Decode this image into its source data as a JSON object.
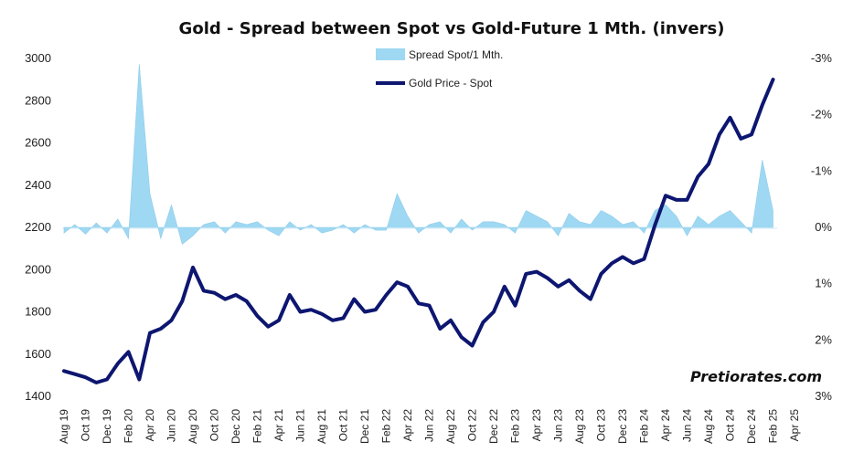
{
  "chart_data": {
    "type": "line",
    "title": "Gold - Spread between Spot vs Gold-Future 1 Mth. (invers)",
    "watermark": "Pretiorates.com",
    "legend_position": "top-center",
    "legend": [
      {
        "name": "Spread Spot/1 Mth.",
        "color": "#9fd8f2",
        "kind": "area"
      },
      {
        "name": "Gold Price - Spot",
        "color": "#0d1670",
        "kind": "line"
      }
    ],
    "x_ticks": [
      "Aug 19",
      "Oct 19",
      "Dec 19",
      "Feb 20",
      "Apr 20",
      "Jun 20",
      "Aug 20",
      "Oct 20",
      "Dec 20",
      "Feb 21",
      "Apr 21",
      "Jun 21",
      "Aug 21",
      "Oct 21",
      "Dec 21",
      "Feb 22",
      "Apr 22",
      "Jun 22",
      "Aug 22",
      "Oct 22",
      "Dec 22",
      "Feb 23",
      "Apr 23",
      "Jun 23",
      "Aug 23",
      "Oct 23",
      "Dec 23",
      "Feb 24",
      "Apr 24",
      "Jun 24",
      "Aug 24",
      "Oct 24",
      "Dec 24",
      "Feb 25",
      "Apr 25"
    ],
    "y_left": {
      "min": 1400,
      "max": 3000,
      "ticks": [
        "1400",
        "1600",
        "1800",
        "2000",
        "2200",
        "2400",
        "2600",
        "2800",
        "3000"
      ]
    },
    "y_right": {
      "min": -3,
      "max": 3,
      "inverted": true,
      "ticks": [
        "-3%",
        "-2%",
        "-1%",
        "0%",
        "1%",
        "2%",
        "3%"
      ]
    },
    "series": [
      {
        "name": "Gold Price - Spot",
        "axis": "left",
        "x": [
          "2019-08",
          "2019-09",
          "2019-10",
          "2019-11",
          "2019-12",
          "2020-01",
          "2020-02",
          "2020-03",
          "2020-04",
          "2020-05",
          "2020-06",
          "2020-07",
          "2020-08",
          "2020-09",
          "2020-10",
          "2020-11",
          "2020-12",
          "2021-01",
          "2021-02",
          "2021-03",
          "2021-04",
          "2021-05",
          "2021-06",
          "2021-07",
          "2021-08",
          "2021-09",
          "2021-10",
          "2021-11",
          "2021-12",
          "2022-01",
          "2022-02",
          "2022-03",
          "2022-04",
          "2022-05",
          "2022-06",
          "2022-07",
          "2022-08",
          "2022-09",
          "2022-10",
          "2022-11",
          "2022-12",
          "2023-01",
          "2023-02",
          "2023-03",
          "2023-04",
          "2023-05",
          "2023-06",
          "2023-07",
          "2023-08",
          "2023-09",
          "2023-10",
          "2023-11",
          "2023-12",
          "2024-01",
          "2024-02",
          "2024-03",
          "2024-04",
          "2024-05",
          "2024-06",
          "2024-07",
          "2024-08",
          "2024-09",
          "2024-10",
          "2024-11",
          "2024-12",
          "2025-01",
          "2025-02"
        ],
        "values": [
          1520,
          1505,
          1490,
          1465,
          1480,
          1555,
          1610,
          1480,
          1700,
          1720,
          1760,
          1850,
          2010,
          1900,
          1890,
          1860,
          1880,
          1850,
          1780,
          1730,
          1760,
          1880,
          1800,
          1810,
          1790,
          1760,
          1770,
          1860,
          1800,
          1810,
          1880,
          1940,
          1920,
          1840,
          1830,
          1720,
          1760,
          1680,
          1640,
          1750,
          1800,
          1920,
          1830,
          1980,
          1990,
          1960,
          1920,
          1950,
          1900,
          1860,
          1980,
          2030,
          2060,
          2030,
          2050,
          2210,
          2350,
          2330,
          2330,
          2440,
          2500,
          2640,
          2720,
          2620,
          2640,
          2780,
          2900
        ]
      },
      {
        "name": "Spread Spot/1 Mth.",
        "axis": "right",
        "x": [
          "2019-08",
          "2019-09",
          "2019-10",
          "2019-11",
          "2019-12",
          "2020-01",
          "2020-02",
          "2020-03",
          "2020-04",
          "2020-05",
          "2020-06",
          "2020-07",
          "2020-08",
          "2020-09",
          "2020-10",
          "2020-11",
          "2020-12",
          "2021-01",
          "2021-02",
          "2021-03",
          "2021-04",
          "2021-05",
          "2021-06",
          "2021-07",
          "2021-08",
          "2021-09",
          "2021-10",
          "2021-11",
          "2021-12",
          "2022-01",
          "2022-02",
          "2022-03",
          "2022-04",
          "2022-05",
          "2022-06",
          "2022-07",
          "2022-08",
          "2022-09",
          "2022-10",
          "2022-11",
          "2022-12",
          "2023-01",
          "2023-02",
          "2023-03",
          "2023-04",
          "2023-05",
          "2023-06",
          "2023-07",
          "2023-08",
          "2023-09",
          "2023-10",
          "2023-11",
          "2023-12",
          "2024-01",
          "2024-02",
          "2024-03",
          "2024-04",
          "2024-05",
          "2024-06",
          "2024-07",
          "2024-08",
          "2024-09",
          "2024-10",
          "2024-11",
          "2024-12",
          "2025-01",
          "2025-02"
        ],
        "values": [
          0.1,
          -0.05,
          0.12,
          -0.08,
          0.1,
          -0.15,
          0.2,
          -2.9,
          -0.6,
          0.2,
          -0.4,
          0.3,
          0.15,
          -0.05,
          -0.1,
          0.1,
          -0.1,
          -0.05,
          -0.1,
          0.05,
          0.15,
          -0.1,
          0.05,
          -0.05,
          0.1,
          0.05,
          -0.05,
          0.1,
          -0.05,
          0.05,
          0.05,
          -0.6,
          -0.2,
          0.1,
          -0.05,
          -0.1,
          0.1,
          -0.15,
          0.05,
          -0.1,
          -0.1,
          -0.05,
          0.1,
          -0.3,
          -0.2,
          -0.1,
          0.15,
          -0.25,
          -0.1,
          -0.05,
          -0.3,
          -0.2,
          -0.05,
          -0.1,
          0.1,
          -0.3,
          -0.4,
          -0.2,
          0.15,
          -0.2,
          -0.05,
          -0.2,
          -0.3,
          -0.1,
          0.1,
          -1.2,
          -0.3
        ]
      }
    ]
  }
}
